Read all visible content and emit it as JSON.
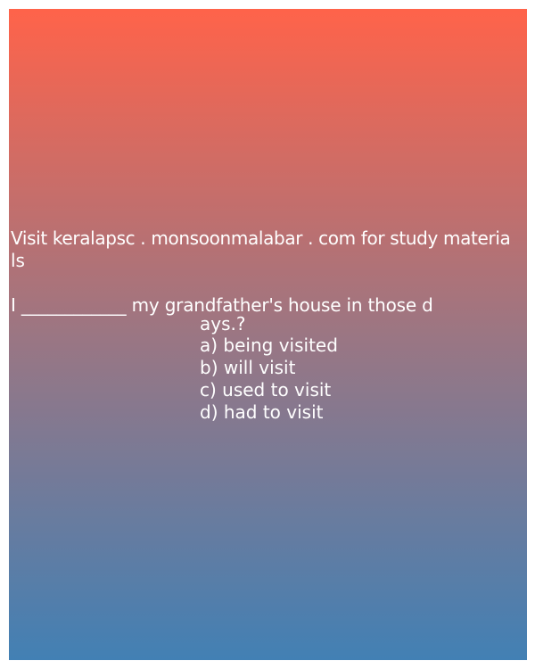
{
  "promo": {
    "line1": "Visit keralapsc . monsoonmalabar . com for study materia",
    "line2": "ls"
  },
  "question": {
    "line1": "I ____________ my grandfather's house in those d",
    "line2": "ays.?"
  },
  "options": [
    {
      "label": "a) being visited"
    },
    {
      "label": "b) will visit"
    },
    {
      "label": "c) used to visit"
    },
    {
      "label": "d) had to visit"
    }
  ],
  "colors": {
    "gradient_top": "#ff634a",
    "gradient_mid": "#9b7683",
    "gradient_bottom": "#4280b4",
    "text": "#ffffff"
  }
}
